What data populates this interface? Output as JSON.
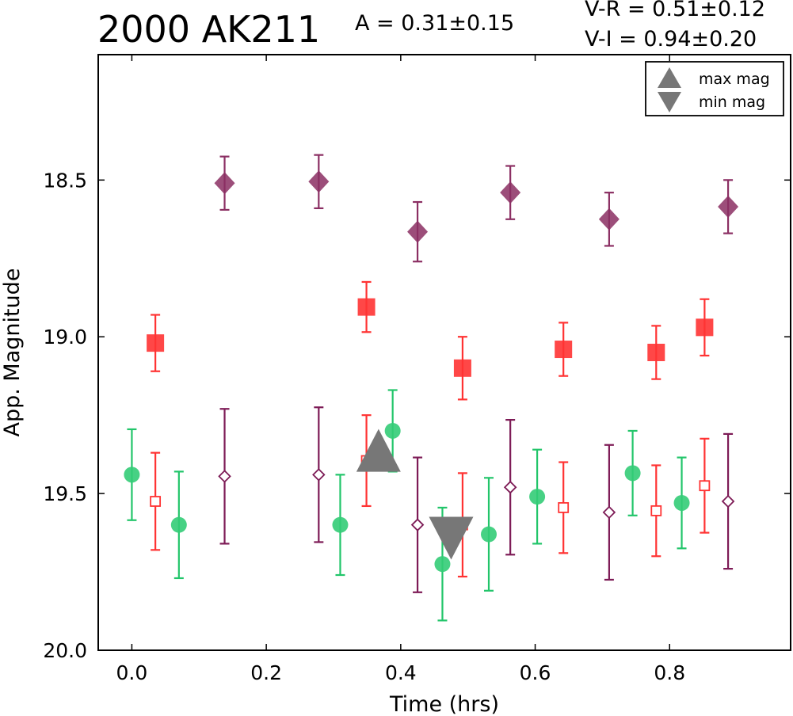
{
  "header": {
    "title": "2000 AK211",
    "amplitude": "A  = 0.31±0.15",
    "color_vr": "V-R = 0.51±0.12",
    "color_vi": "V-I  = 0.94±0.20"
  },
  "chart_data": {
    "type": "scatter",
    "title": "2000 AK211",
    "xlabel": "Time (hrs)",
    "ylabel": "App. Magnitude",
    "xlim": [
      -0.05,
      0.98
    ],
    "ylim": [
      20.0,
      18.1
    ],
    "y_inverted": true,
    "grid": false,
    "x_ticks": [
      "0.0",
      "0.2",
      "0.4",
      "0.6",
      "0.8"
    ],
    "x_tick_values": [
      0.0,
      0.2,
      0.4,
      0.6,
      0.8
    ],
    "y_ticks": [
      "18.5",
      "19.0",
      "19.5",
      "20.0"
    ],
    "y_tick_values": [
      18.5,
      19.0,
      19.5,
      20.0
    ],
    "legend": {
      "placement": "top-right",
      "entries": [
        {
          "label": "max mag",
          "marker": "triangle-up",
          "color": "#777777"
        },
        {
          "label": "min mag",
          "marker": "triangle-down",
          "color": "#777777"
        }
      ]
    },
    "series": [
      {
        "marker": "diamond-filled",
        "color": "#8b2f63",
        "x": [
          0.138,
          0.278,
          0.425,
          0.563,
          0.71,
          0.887
        ],
        "y": [
          18.51,
          18.505,
          18.665,
          18.54,
          18.625,
          18.585
        ],
        "err": [
          0.085,
          0.085,
          0.095,
          0.085,
          0.085,
          0.085
        ]
      },
      {
        "marker": "square-filled",
        "color": "#ff3333",
        "x": [
          0.035,
          0.349,
          0.492,
          0.642,
          0.78,
          0.852
        ],
        "y": [
          19.02,
          18.905,
          19.1,
          19.04,
          19.05,
          18.97
        ],
        "err": [
          0.09,
          0.08,
          0.1,
          0.085,
          0.085,
          0.09
        ]
      },
      {
        "marker": "circle-filled",
        "color": "#33cc77",
        "x": [
          0.0,
          0.07,
          0.31,
          0.388,
          0.462,
          0.531,
          0.603,
          0.745,
          0.818
        ],
        "y": [
          19.44,
          19.6,
          19.6,
          19.3,
          19.725,
          19.63,
          19.51,
          19.435,
          19.53
        ],
        "err": [
          0.145,
          0.17,
          0.16,
          0.13,
          0.18,
          0.18,
          0.15,
          0.135,
          0.145
        ]
      },
      {
        "marker": "square-open",
        "color": "#ff3333",
        "x": [
          0.035,
          0.349,
          0.492,
          0.642,
          0.78,
          0.852
        ],
        "y": [
          19.525,
          19.395,
          19.6,
          19.545,
          19.555,
          19.475
        ],
        "err": [
          0.155,
          0.145,
          0.165,
          0.145,
          0.145,
          0.15
        ]
      },
      {
        "marker": "diamond-open",
        "color": "#7d1b56",
        "x": [
          0.138,
          0.278,
          0.425,
          0.563,
          0.71,
          0.887
        ],
        "y": [
          19.445,
          19.44,
          19.6,
          19.48,
          19.56,
          19.525
        ],
        "err": [
          0.215,
          0.215,
          0.215,
          0.215,
          0.215,
          0.215
        ]
      }
    ],
    "extrema": [
      {
        "label": "max mag",
        "marker": "triangle-up",
        "x": 0.367,
        "y": 19.37,
        "color": "#777777"
      },
      {
        "label": "min mag",
        "marker": "triangle-down",
        "x": 0.475,
        "y": 19.635,
        "color": "#777777"
      }
    ]
  }
}
